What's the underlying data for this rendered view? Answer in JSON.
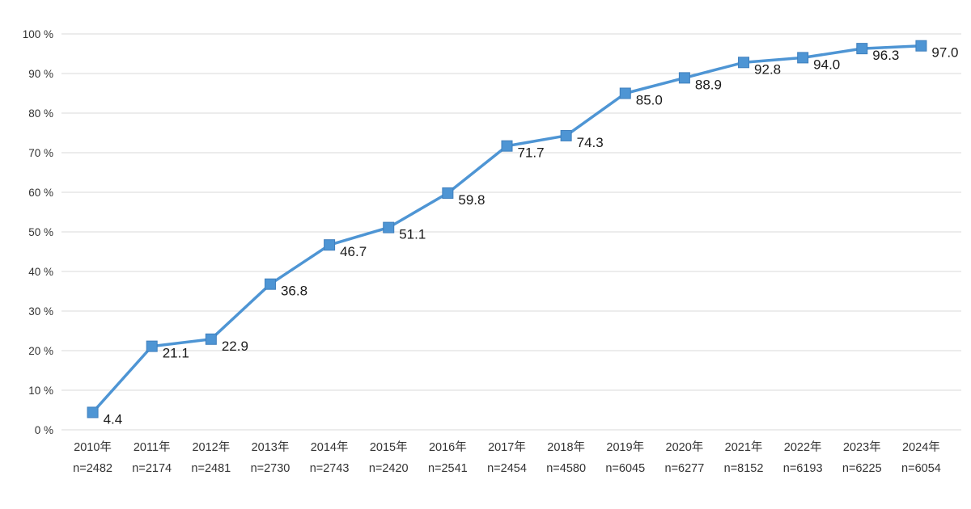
{
  "chart_data": {
    "type": "line",
    "title": "",
    "xlabel": "",
    "ylabel": "",
    "categories": [
      "2010年",
      "2011年",
      "2012年",
      "2013年",
      "2014年",
      "2015年",
      "2016年",
      "2017年",
      "2018年",
      "2019年",
      "2020年",
      "2021年",
      "2022年",
      "2023年",
      "2024年"
    ],
    "n_labels": [
      "n=2482",
      "n=2174",
      "n=2481",
      "n=2730",
      "n=2743",
      "n=2420",
      "n=2541",
      "n=2454",
      "n=4580",
      "n=6045",
      "n=6277",
      "n=8152",
      "n=6193",
      "n=6225",
      "n=6054"
    ],
    "values": [
      4.4,
      21.1,
      22.9,
      36.8,
      46.7,
      51.1,
      59.8,
      71.7,
      74.3,
      85.0,
      88.9,
      92.8,
      94.0,
      96.3,
      97.0
    ],
    "value_labels": [
      "4.4",
      "21.1",
      "22.9",
      "36.8",
      "46.7",
      "51.1",
      "59.8",
      "71.7",
      "74.3",
      "85.0",
      "88.9",
      "92.8",
      "94.0",
      "96.3",
      "97.0"
    ],
    "ylim": [
      0,
      100
    ],
    "ytick_step": 10,
    "ytick_suffix": " %",
    "grid": true,
    "legend": "none",
    "marker": "square",
    "line_color": "#4e95d4",
    "marker_fill": "#4e95d4",
    "marker_stroke": "#3f7fbd",
    "label_color": "#1a1a1a",
    "axis_text_color": "#333333",
    "grid_color": "#d9d9d9"
  }
}
